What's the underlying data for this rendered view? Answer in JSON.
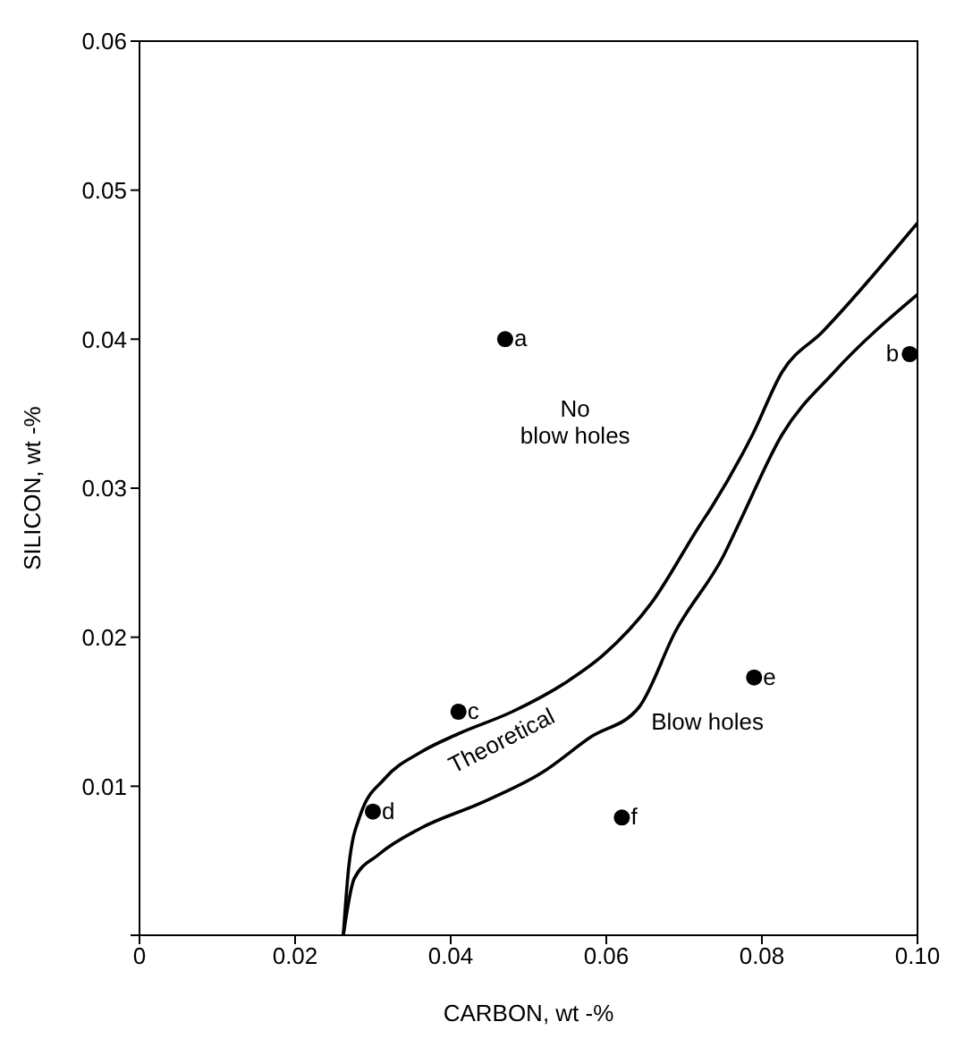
{
  "chart_data": {
    "type": "line",
    "xlabel": "CARBON, wt -%",
    "ylabel": "SILICON, wt -%",
    "xlim": [
      0,
      0.1
    ],
    "ylim": [
      0,
      0.06
    ],
    "xticks": [
      0,
      0.02,
      0.04,
      0.06,
      0.08,
      {
        "value": 0.1,
        "label": "0.10"
      }
    ],
    "yticks": [
      {
        "value": 0,
        "label": null
      },
      0.01,
      0.02,
      0.03,
      0.04,
      0.05,
      0.06
    ],
    "series": [
      {
        "color": "#000000",
        "marker": "none",
        "x": [
          0.0262,
          0.0269,
          0.0284,
          0.0315,
          0.0362,
          0.0409,
          0.0479,
          0.0549,
          0.0596,
          0.0658,
          0.072,
          0.0735,
          0.0788,
          0.0826,
          0.0878,
          0.1
        ],
        "values": [
          0,
          0.0046,
          0.0081,
          0.0105,
          0.0123,
          0.0135,
          0.015,
          0.017,
          0.0188,
          0.0223,
          0.0275,
          0.0287,
          0.0336,
          0.0378,
          0.0405,
          0.0478
        ]
      },
      {
        "color": "#000000",
        "marker": "none",
        "x": [
          0.0262,
          0.0276,
          0.0307,
          0.0362,
          0.044,
          0.0517,
          0.058,
          0.0642,
          0.0689,
          0.0751,
          0.0773,
          0.0826,
          0.0893,
          0.1
        ],
        "values": [
          0,
          0.0038,
          0.0054,
          0.0072,
          0.0089,
          0.0109,
          0.0133,
          0.0153,
          0.0204,
          0.0255,
          0.0279,
          0.0336,
          0.0378,
          0.043
        ]
      },
      {
        "type": "scatter",
        "color": "#000000",
        "marker": "circle",
        "x": [
          0.047,
          0.099,
          0.041,
          0.03,
          0.079,
          0.062
        ],
        "values": [
          0.04,
          0.039,
          0.015,
          0.0083,
          0.0173,
          0.0079
        ]
      }
    ],
    "annotations": [
      {
        "text": "a",
        "x": 0.047,
        "y": 0.04
      },
      {
        "text": "b",
        "x": 0.099,
        "y": 0.039
      },
      {
        "text": "c",
        "x": 0.041,
        "y": 0.015
      },
      {
        "text": "d",
        "x": 0.03,
        "y": 0.0083
      },
      {
        "text": "e",
        "x": 0.079,
        "y": 0.0173
      },
      {
        "text": "f",
        "x": 0.062,
        "y": 0.0079
      },
      "No blow holes",
      "Blow holes",
      "Theoretical"
    ]
  }
}
